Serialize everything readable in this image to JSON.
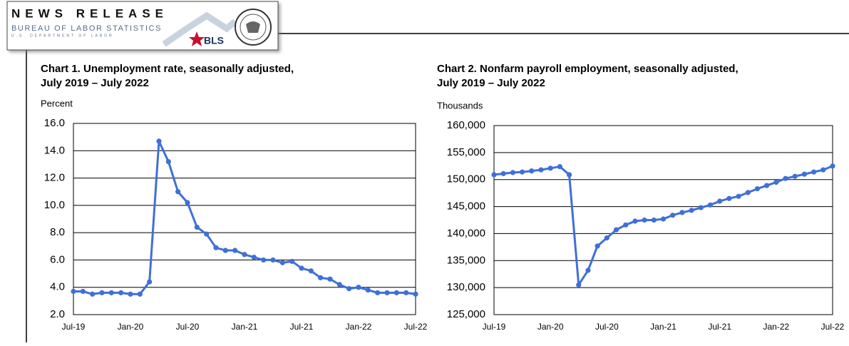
{
  "header": {
    "title": "NEWS RELEASE",
    "agency": "BUREAU OF LABOR STATISTICS",
    "department": "U.S. DEPARTMENT OF LABOR",
    "logo_text": "BLS"
  },
  "charts": [
    {
      "chart_data": {
        "type": "line",
        "title": "Chart 1. Unemployment rate, seasonally adjusted,",
        "subtitle": "July 2019 – July 2022",
        "y_label": "Percent",
        "categories": [
          "Jul-19",
          null,
          null,
          null,
          null,
          null,
          "Jan-20",
          null,
          null,
          null,
          null,
          null,
          "Jul-20",
          null,
          null,
          null,
          null,
          null,
          "Jan-21",
          null,
          null,
          null,
          null,
          null,
          "Jul-21",
          null,
          null,
          null,
          null,
          null,
          "Jan-22",
          null,
          null,
          null,
          null,
          null,
          "Jul-22"
        ],
        "values": [
          3.7,
          3.7,
          3.5,
          3.6,
          3.6,
          3.6,
          3.5,
          3.5,
          4.4,
          14.7,
          13.2,
          11.0,
          10.2,
          8.4,
          7.9,
          6.9,
          6.7,
          6.7,
          6.4,
          6.2,
          6.0,
          6.0,
          5.8,
          5.9,
          5.4,
          5.2,
          4.7,
          4.6,
          4.2,
          3.9,
          4.0,
          3.8,
          3.6,
          3.6,
          3.6,
          3.6,
          3.5
        ],
        "color": "#3f6fd8",
        "ylim": [
          2,
          16
        ],
        "yticks": [
          {
            "value": 2,
            "label": "2.0"
          },
          {
            "value": 4,
            "label": "4.0"
          },
          {
            "value": 6,
            "label": "6.0"
          },
          {
            "value": 8,
            "label": "8.0"
          },
          {
            "value": 10,
            "label": "10.0"
          },
          {
            "value": 12,
            "label": "12.0"
          },
          {
            "value": 14,
            "label": "14.0"
          },
          {
            "value": 16,
            "label": "16.0"
          }
        ],
        "grid": true
      }
    },
    {
      "chart_data": {
        "type": "line",
        "title": "Chart 2. Nonfarm payroll employment, seasonally adjusted,",
        "subtitle": "July 2019 – July 2022",
        "y_label": "Thousands",
        "categories": [
          "Jul-19",
          null,
          null,
          null,
          null,
          null,
          "Jan-20",
          null,
          null,
          null,
          null,
          null,
          "Jul-20",
          null,
          null,
          null,
          null,
          null,
          "Jan-21",
          null,
          null,
          null,
          null,
          null,
          "Jul-21",
          null,
          null,
          null,
          null,
          null,
          "Jan-22",
          null,
          null,
          null,
          null,
          null,
          "Jul-22"
        ],
        "values": [
          150900,
          151100,
          151300,
          151400,
          151600,
          151800,
          152100,
          152400,
          150900,
          130500,
          133200,
          137700,
          139200,
          140700,
          141600,
          142300,
          142500,
          142500,
          142700,
          143400,
          143900,
          144300,
          144800,
          145300,
          146000,
          146500,
          146900,
          147600,
          148300,
          148900,
          149500,
          150200,
          150600,
          151000,
          151400,
          151800,
          152500
        ],
        "color": "#3f6fd8",
        "ylim": [
          125000,
          160000
        ],
        "yticks": [
          {
            "value": 125000,
            "label": "125,000"
          },
          {
            "value": 130000,
            "label": "130,000"
          },
          {
            "value": 135000,
            "label": "135,000"
          },
          {
            "value": 140000,
            "label": "140,000"
          },
          {
            "value": 145000,
            "label": "145,000"
          },
          {
            "value": 150000,
            "label": "150,000"
          },
          {
            "value": 155000,
            "label": "155,000"
          },
          {
            "value": 160000,
            "label": "160,000"
          }
        ],
        "grid": true
      }
    }
  ]
}
